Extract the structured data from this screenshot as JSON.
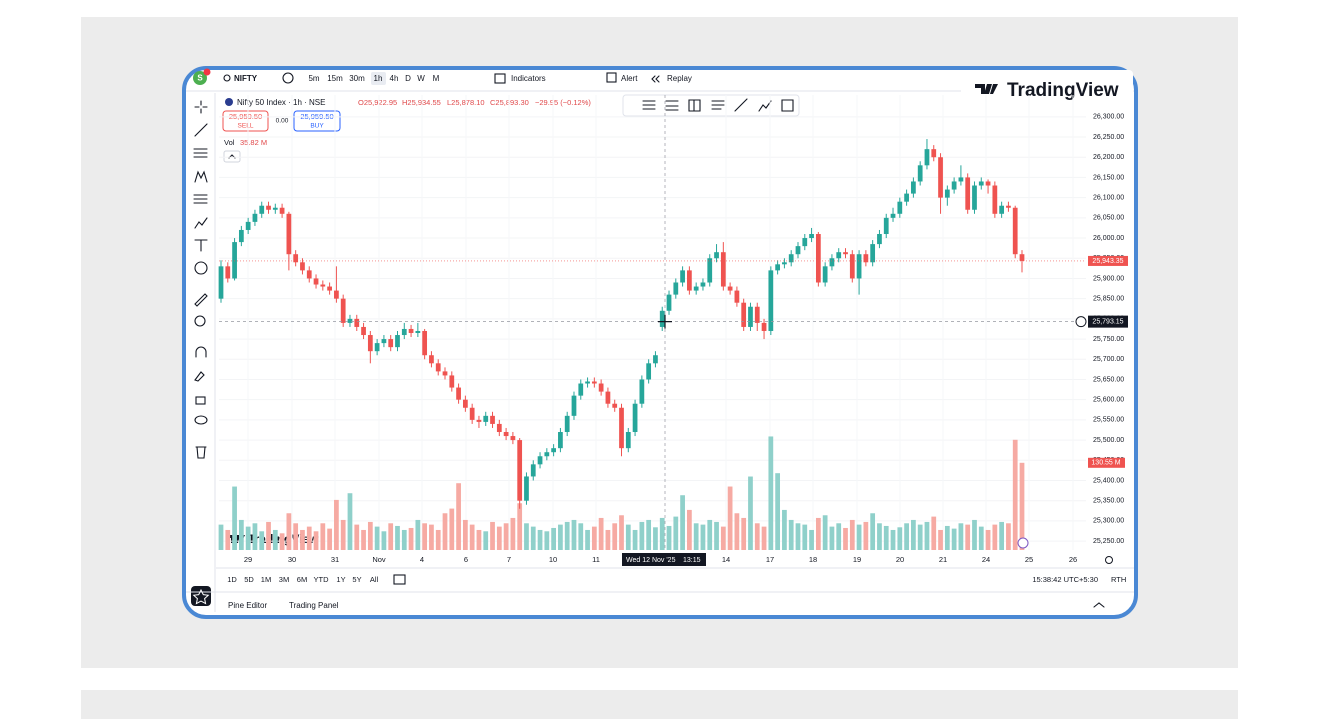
{
  "toolbar": {
    "symbol": "NIFTY",
    "intervals": [
      "5m",
      "15m",
      "30m",
      "1h",
      "4h",
      "D",
      "W",
      "M"
    ],
    "indicators": "Indicators",
    "alert": "Alert",
    "replay": "Replay"
  },
  "brand": {
    "logo": "TradingView",
    "watermark": "TradingView"
  },
  "legend": {
    "open": "O25,922.95",
    "high": "H25,934.55",
    "low": "L25,878.10",
    "close": "C25,893.30",
    "change": "−29.95 (−0.12%)",
    "sell_price": "25,959.50",
    "sell": "SELL",
    "spread": "0.00",
    "buy_price": "25,959.50",
    "buy": "BUY",
    "vol": "Vol",
    "vol_value": "35.82 M"
  },
  "chart_data": {
    "type": "candlestick",
    "title": "Nifty 50 Index · 1h · NSE",
    "up_color": "#26a69a",
    "down_color": "#ef5350",
    "volume_up_color": "#8fd0ca",
    "volume_down_color": "#f6aaa3",
    "ylim": [
      25228,
      26354
    ],
    "yticks": [
      {
        "value": 26300,
        "label": "26,300.00"
      },
      {
        "value": 26250,
        "label": "26,250.00"
      },
      {
        "value": 26200,
        "label": "26,200.00"
      },
      {
        "value": 26150,
        "label": "26,150.00"
      },
      {
        "value": 26100,
        "label": "26,100.00"
      },
      {
        "value": 26050,
        "label": "26,050.00"
      },
      {
        "value": 26000,
        "label": "26,000.00"
      },
      {
        "value": 25950,
        "label": "25,950.00"
      },
      {
        "value": 25900,
        "label": "25,900.00"
      },
      {
        "value": 25850,
        "label": "25,850.00"
      },
      {
        "value": 25800,
        "label": "25,800.00"
      },
      {
        "value": 25750,
        "label": "25,750.00"
      },
      {
        "value": 25700,
        "label": "25,700.00"
      },
      {
        "value": 25650,
        "label": "25,650.00"
      },
      {
        "value": 25600,
        "label": "25,600.00"
      },
      {
        "value": 25550,
        "label": "25,550.00"
      },
      {
        "value": 25500,
        "label": "25,500.00"
      },
      {
        "value": 25450,
        "label": "25,450.00"
      },
      {
        "value": 25400,
        "label": "25,400.00"
      },
      {
        "value": 25350,
        "label": "25,350.00"
      },
      {
        "value": 25300,
        "label": "25,300.00"
      },
      {
        "value": 25250,
        "label": "25,250.00"
      }
    ],
    "vlim": [
      0,
      250
    ],
    "grid": true,
    "x_labels": [
      "29",
      "30",
      "31",
      "Nov",
      "4",
      "6",
      "7",
      "10",
      "11",
      "14",
      "17",
      "18",
      "19",
      "20",
      "21",
      "24",
      "25",
      "26"
    ],
    "crosshair_date": "Wed 12 Nov '25",
    "crosshair_time": "13:15",
    "crosshair_price": {
      "value": 25793.15,
      "label": "25,793.15"
    },
    "last_price": {
      "value": 25943.35,
      "label": "25,943.35"
    },
    "last_volume": {
      "value": 130.55,
      "label": "130.55 M"
    },
    "open": [
      25850,
      25930,
      25900,
      25990,
      26020,
      26040,
      26060,
      26080,
      26070,
      26075,
      26060,
      25960,
      25940,
      25920,
      25900,
      25885,
      25880,
      25870,
      25850,
      25790,
      25800,
      25780,
      25760,
      25720,
      25740,
      25750,
      25730,
      25760,
      25775,
      25765,
      25770,
      25710,
      25690,
      25670,
      25660,
      25630,
      25600,
      25580,
      25550,
      25545,
      25560,
      25540,
      25520,
      25510,
      25500,
      25350,
      25410,
      25440,
      25460,
      25470,
      25480,
      25520,
      25560,
      25610,
      25640,
      25645,
      25640,
      25620,
      25590,
      25580,
      25480,
      25520,
      25590,
      25650,
      25690,
      25780,
      25820,
      25860,
      25890,
      25920,
      25870,
      25880,
      25890,
      25950,
      25965,
      25880,
      25870,
      25840,
      25780,
      25830,
      25790,
      25770,
      25920,
      25935,
      25940,
      25960,
      25980,
      26000,
      26010,
      25890,
      25930,
      25950,
      25965,
      25960,
      25900,
      25960,
      25940,
      25985,
      26010,
      26050,
      26060,
      26090,
      26110,
      26140,
      26180,
      26220,
      26200,
      26100,
      26120,
      26140,
      26150,
      26070,
      26130,
      26140,
      26130,
      26060,
      26080,
      26075,
      25960
    ],
    "high": [
      25945,
      25940,
      26000,
      26030,
      26050,
      26070,
      26090,
      26090,
      26085,
      26085,
      26065,
      25970,
      25950,
      25930,
      25910,
      25895,
      25890,
      25930,
      25860,
      25810,
      25810,
      25790,
      25770,
      25750,
      25760,
      25760,
      25770,
      25790,
      25785,
      25790,
      25775,
      25720,
      25700,
      25680,
      25670,
      25640,
      25610,
      25590,
      25560,
      25570,
      25570,
      25550,
      25530,
      25520,
      25505,
      25420,
      25450,
      25470,
      25480,
      25490,
      25530,
      25570,
      25620,
      25650,
      25655,
      25655,
      25650,
      25630,
      25600,
      25590,
      25530,
      25600,
      25660,
      25700,
      25720,
      25830,
      25870,
      25900,
      25930,
      25930,
      25890,
      25900,
      25960,
      25985,
      25990,
      25890,
      25880,
      25850,
      25840,
      25840,
      25800,
      25930,
      25945,
      25950,
      25970,
      25990,
      26010,
      26025,
      26015,
      25940,
      25960,
      25975,
      25975,
      25970,
      25970,
      25970,
      25995,
      26020,
      26060,
      26075,
      26100,
      26120,
      26150,
      26190,
      26245,
      26230,
      26210,
      26130,
      26150,
      26180,
      26160,
      26140,
      26150,
      26145,
      26140,
      26090,
      26090,
      26080,
      25970
    ],
    "low": [
      25840,
      25890,
      25895,
      25980,
      26010,
      26030,
      26050,
      26060,
      26060,
      26050,
      25920,
      25930,
      25910,
      25890,
      25875,
      25870,
      25860,
      25840,
      25780,
      25780,
      25770,
      25750,
      25690,
      25710,
      25730,
      25720,
      25720,
      25750,
      25755,
      25755,
      25700,
      25680,
      25660,
      25650,
      25620,
      25590,
      25570,
      25540,
      25530,
      25535,
      25530,
      25510,
      25500,
      25490,
      25330,
      25340,
      25400,
      25430,
      25450,
      25460,
      25470,
      25510,
      25550,
      25600,
      25630,
      25630,
      25610,
      25580,
      25570,
      25460,
      25470,
      25510,
      25580,
      25640,
      25680,
      25770,
      25810,
      25850,
      25880,
      25860,
      25860,
      25870,
      25880,
      25940,
      25870,
      25860,
      25830,
      25770,
      25770,
      25770,
      25750,
      25760,
      25910,
      25925,
      25930,
      25950,
      25970,
      25990,
      25880,
      25880,
      25920,
      25940,
      25950,
      25890,
      25860,
      25930,
      25930,
      25975,
      26000,
      26040,
      26050,
      26080,
      26100,
      26130,
      26170,
      26190,
      26060,
      26080,
      26110,
      26130,
      26060,
      26060,
      26120,
      26110,
      26050,
      26050,
      26065,
      25950,
      25915
    ],
    "close": [
      25930,
      25900,
      25990,
      26020,
      26040,
      26060,
      26080,
      26070,
      26075,
      26060,
      25960,
      25940,
      25920,
      25900,
      25885,
      25880,
      25870,
      25850,
      25790,
      25800,
      25780,
      25760,
      25720,
      25740,
      25750,
      25730,
      25760,
      25775,
      25765,
      25770,
      25710,
      25690,
      25670,
      25660,
      25630,
      25600,
      25580,
      25550,
      25545,
      25560,
      25540,
      25520,
      25510,
      25500,
      25350,
      25410,
      25440,
      25460,
      25470,
      25480,
      25520,
      25560,
      25610,
      25640,
      25645,
      25640,
      25620,
      25590,
      25580,
      25480,
      25520,
      25590,
      25650,
      25690,
      25710,
      25820,
      25860,
      25890,
      25920,
      25870,
      25880,
      25890,
      25950,
      25965,
      25880,
      25870,
      25840,
      25780,
      25830,
      25790,
      25770,
      25920,
      25935,
      25940,
      25960,
      25980,
      26000,
      26010,
      25890,
      25930,
      25950,
      25965,
      25960,
      25900,
      25960,
      25940,
      25985,
      26010,
      26050,
      26060,
      26090,
      26110,
      26140,
      26180,
      26220,
      26200,
      26100,
      26120,
      26140,
      26150,
      26070,
      26130,
      26140,
      26130,
      26060,
      26080,
      26075,
      25960,
      25943.35
    ],
    "volume": [
      38,
      30,
      95,
      45,
      35,
      40,
      28,
      42,
      30,
      25,
      55,
      40,
      30,
      35,
      28,
      40,
      32,
      75,
      45,
      85,
      38,
      30,
      42,
      35,
      28,
      40,
      36,
      30,
      33,
      45,
      40,
      38,
      30,
      55,
      62,
      100,
      45,
      38,
      30,
      28,
      42,
      35,
      40,
      48,
      70,
      40,
      35,
      30,
      28,
      33,
      38,
      42,
      45,
      40,
      30,
      35,
      48,
      30,
      40,
      52,
      38,
      30,
      42,
      45,
      34,
      48,
      36,
      50,
      82,
      60,
      40,
      38,
      45,
      42,
      35,
      95,
      55,
      48,
      110,
      40,
      35,
      170,
      115,
      60,
      45,
      40,
      38,
      30,
      48,
      52,
      35,
      40,
      33,
      45,
      38,
      42,
      55,
      40,
      36,
      30,
      34,
      40,
      45,
      38,
      42,
      50,
      30,
      36,
      32,
      40,
      38,
      45,
      35,
      30,
      38,
      42,
      40,
      165,
      130.55
    ]
  },
  "range_bar": {
    "ranges": [
      "1D",
      "5D",
      "1M",
      "3M",
      "6M",
      "YTD",
      "1Y",
      "5Y",
      "All"
    ],
    "clock": "15:38:42 UTC+5:30",
    "session": "RTH"
  },
  "footer": {
    "pine_editor": "Pine Editor",
    "trading_panel": "Trading Panel"
  },
  "account": {
    "initial": "S"
  }
}
